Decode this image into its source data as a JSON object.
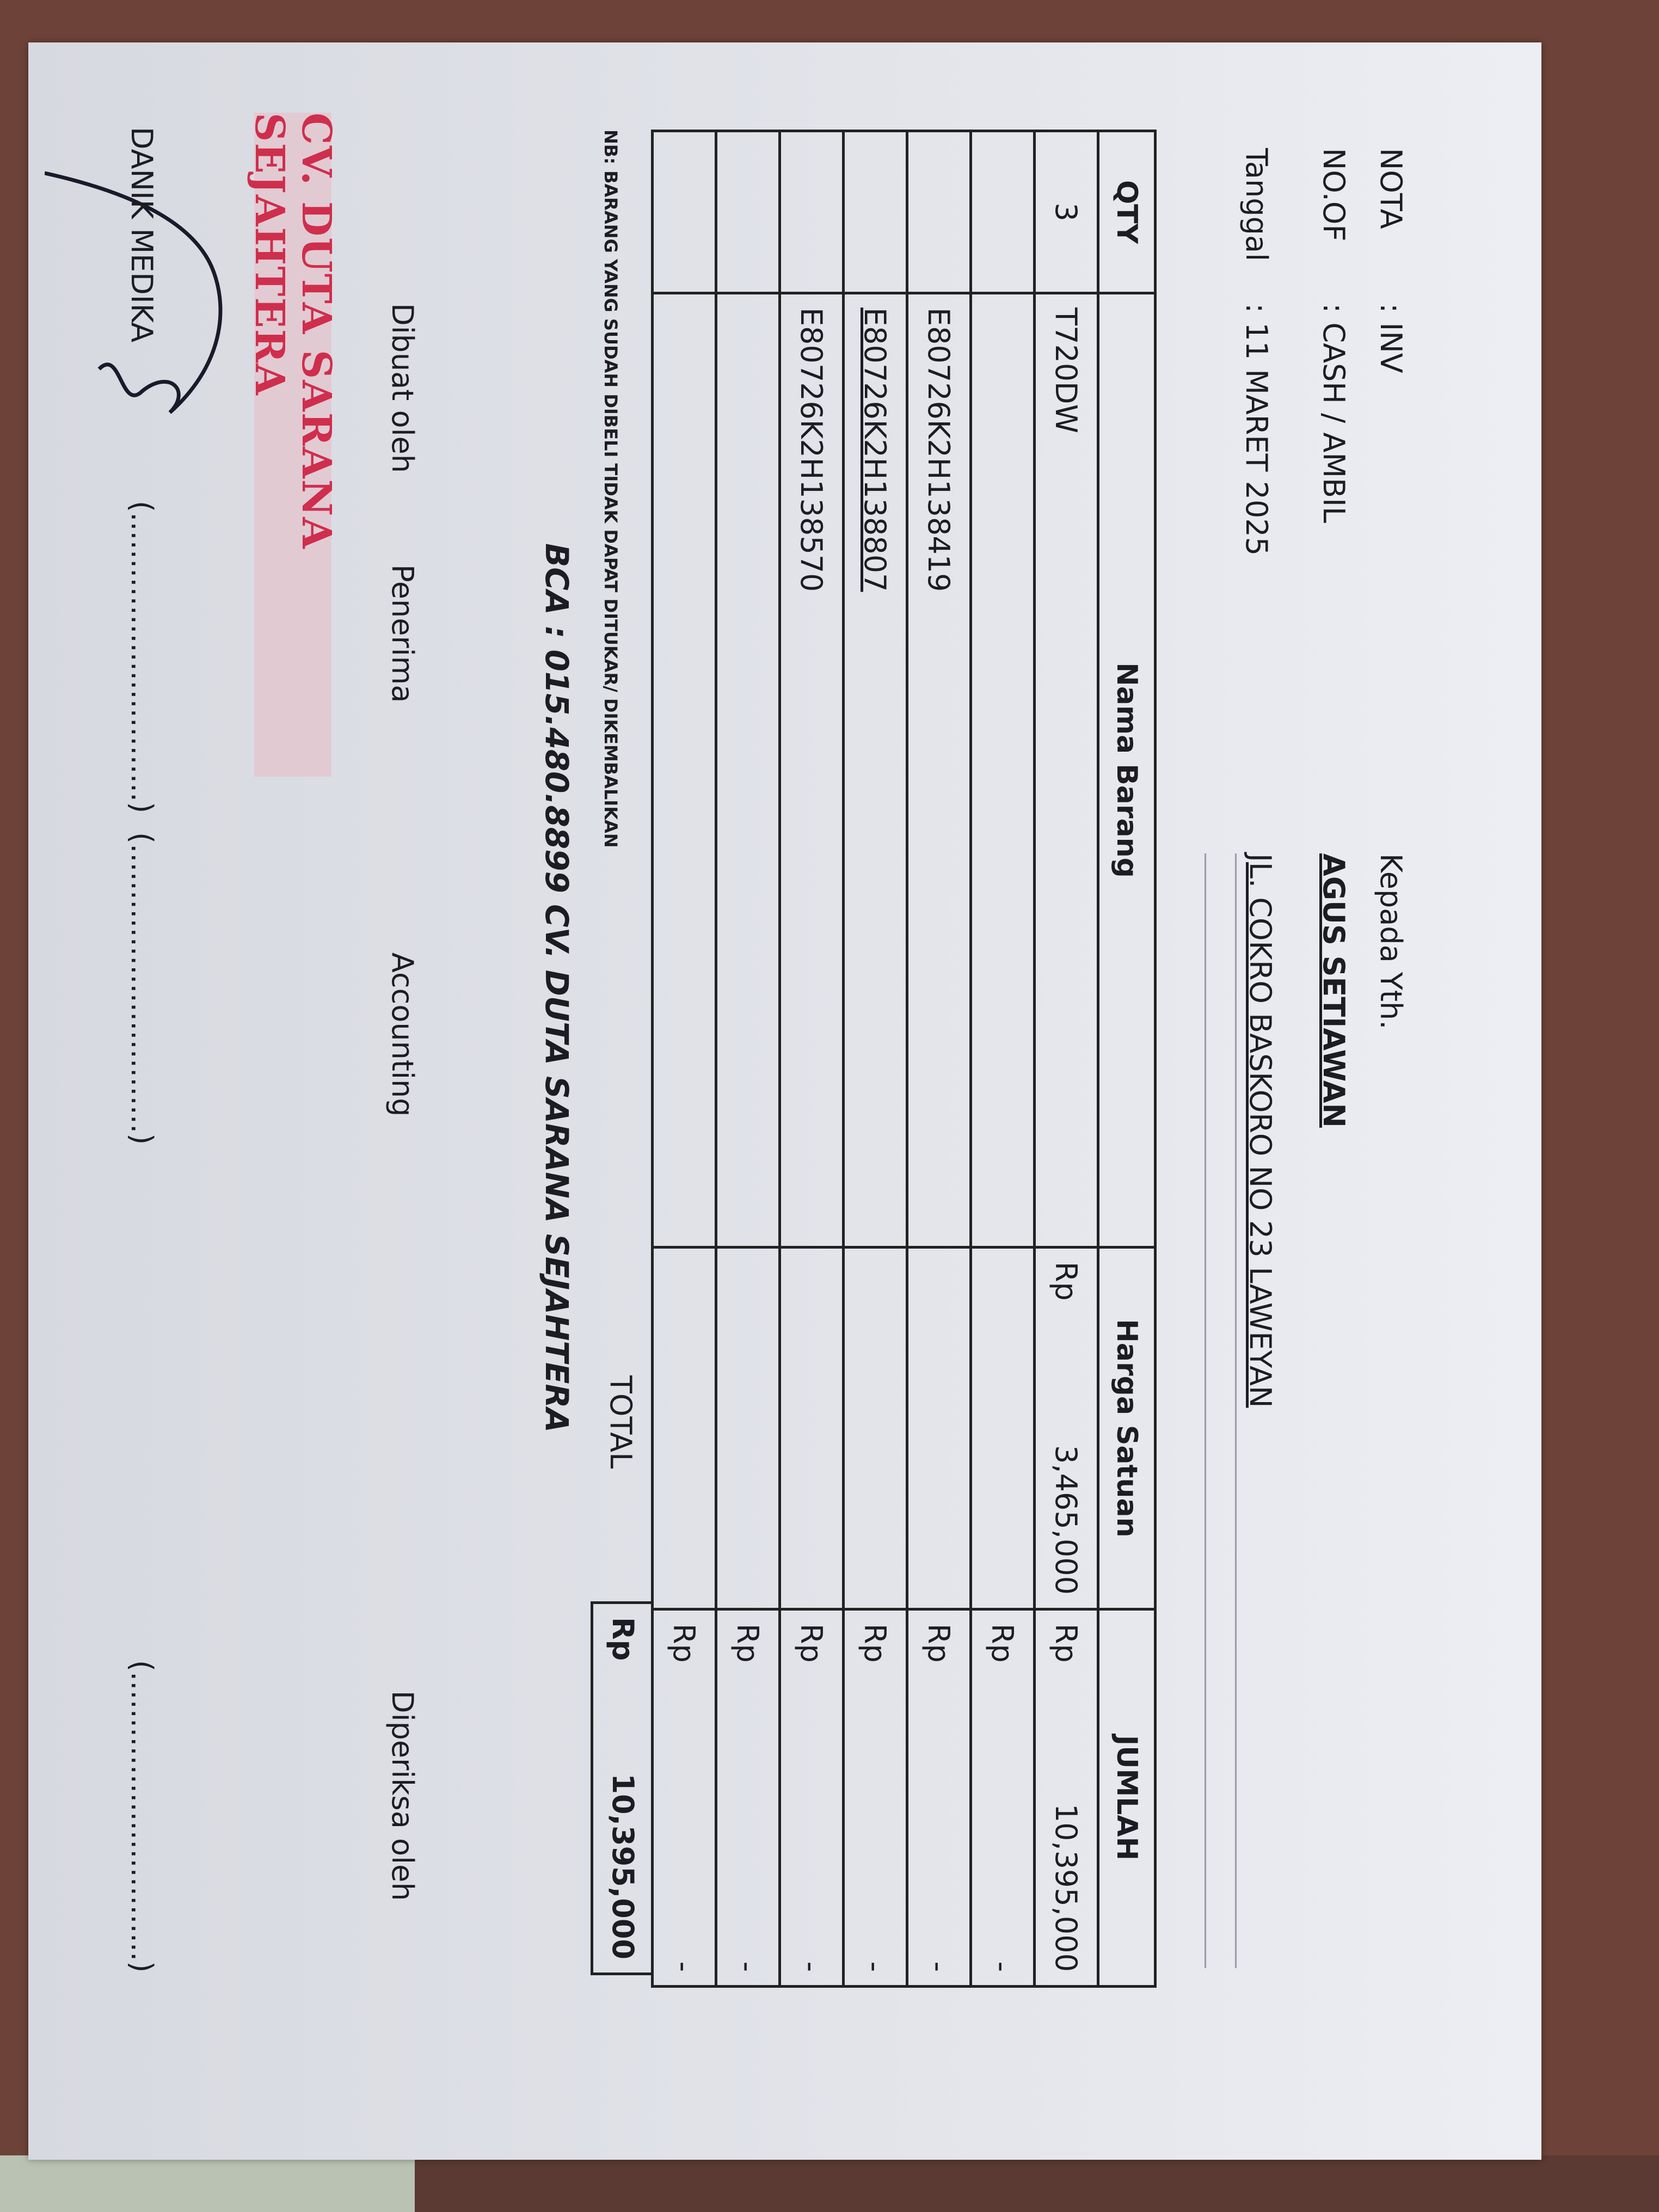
{
  "header": {
    "nota_label": "NOTA",
    "nota_value": ": INV",
    "noof_label": "NO.OF",
    "noof_value": ": CASH / AMBIL",
    "tanggal_label": "Tanggal",
    "tanggal_value": ": 11 MARET 2025",
    "kepada_label": "Kepada Yth.",
    "customer_name": "AGUS SETIAWAN",
    "customer_address": "JL. COKRO BASKORO NO 23 LAWEYAN"
  },
  "table": {
    "columns": [
      "QTY",
      "Nama Barang",
      "Harga Satuan",
      "JUMLAH"
    ],
    "rows": [
      {
        "qty": "3",
        "name": "T720DW",
        "price_cur": "Rp",
        "price": "3,465,000",
        "sum_cur": "Rp",
        "sum": "10,395,000"
      },
      {
        "qty": "",
        "name": "",
        "price_cur": "",
        "price": "",
        "sum_cur": "Rp",
        "sum": "-"
      },
      {
        "qty": "",
        "name": "E80726K2H138419",
        "price_cur": "",
        "price": "",
        "sum_cur": "Rp",
        "sum": "-"
      },
      {
        "qty": "",
        "name": "E80726K2H138807",
        "price_cur": "",
        "price": "",
        "sum_cur": "Rp",
        "sum": "-"
      },
      {
        "qty": "",
        "name": "E80726K2H138570",
        "price_cur": "",
        "price": "",
        "sum_cur": "Rp",
        "sum": "-"
      },
      {
        "qty": "",
        "name": "",
        "price_cur": "",
        "price": "",
        "sum_cur": "Rp",
        "sum": "-"
      },
      {
        "qty": "",
        "name": "",
        "price_cur": "",
        "price": "",
        "sum_cur": "Rp",
        "sum": "-"
      }
    ],
    "total_label": "TOTAL",
    "total_cur": "Rp",
    "total_value": "10,395,000"
  },
  "notes": {
    "nb": "NB: BARANG YANG SUDAH DIBELI TIDAK DAPAT DITUKAR/ DIKEMBALIKAN",
    "bank": "BCA : 015.480.8899 CV. DUTA SARANA SEJAHTERA"
  },
  "signatures": {
    "made_by_label": "Dibuat oleh",
    "receiver_label": "Penerima",
    "accounting_label": "Accounting",
    "checked_by_label": "Diperiksa oleh",
    "made_by_name": "DANIK MEDIKA",
    "receiver_blank": "(...............................)",
    "accounting_blank": "(...............................)",
    "checked_blank": "(...............................)"
  },
  "stamp": {
    "text": "CV. DUTA SARANA SEJAHTERA",
    "color": "#cf2e4c"
  }
}
